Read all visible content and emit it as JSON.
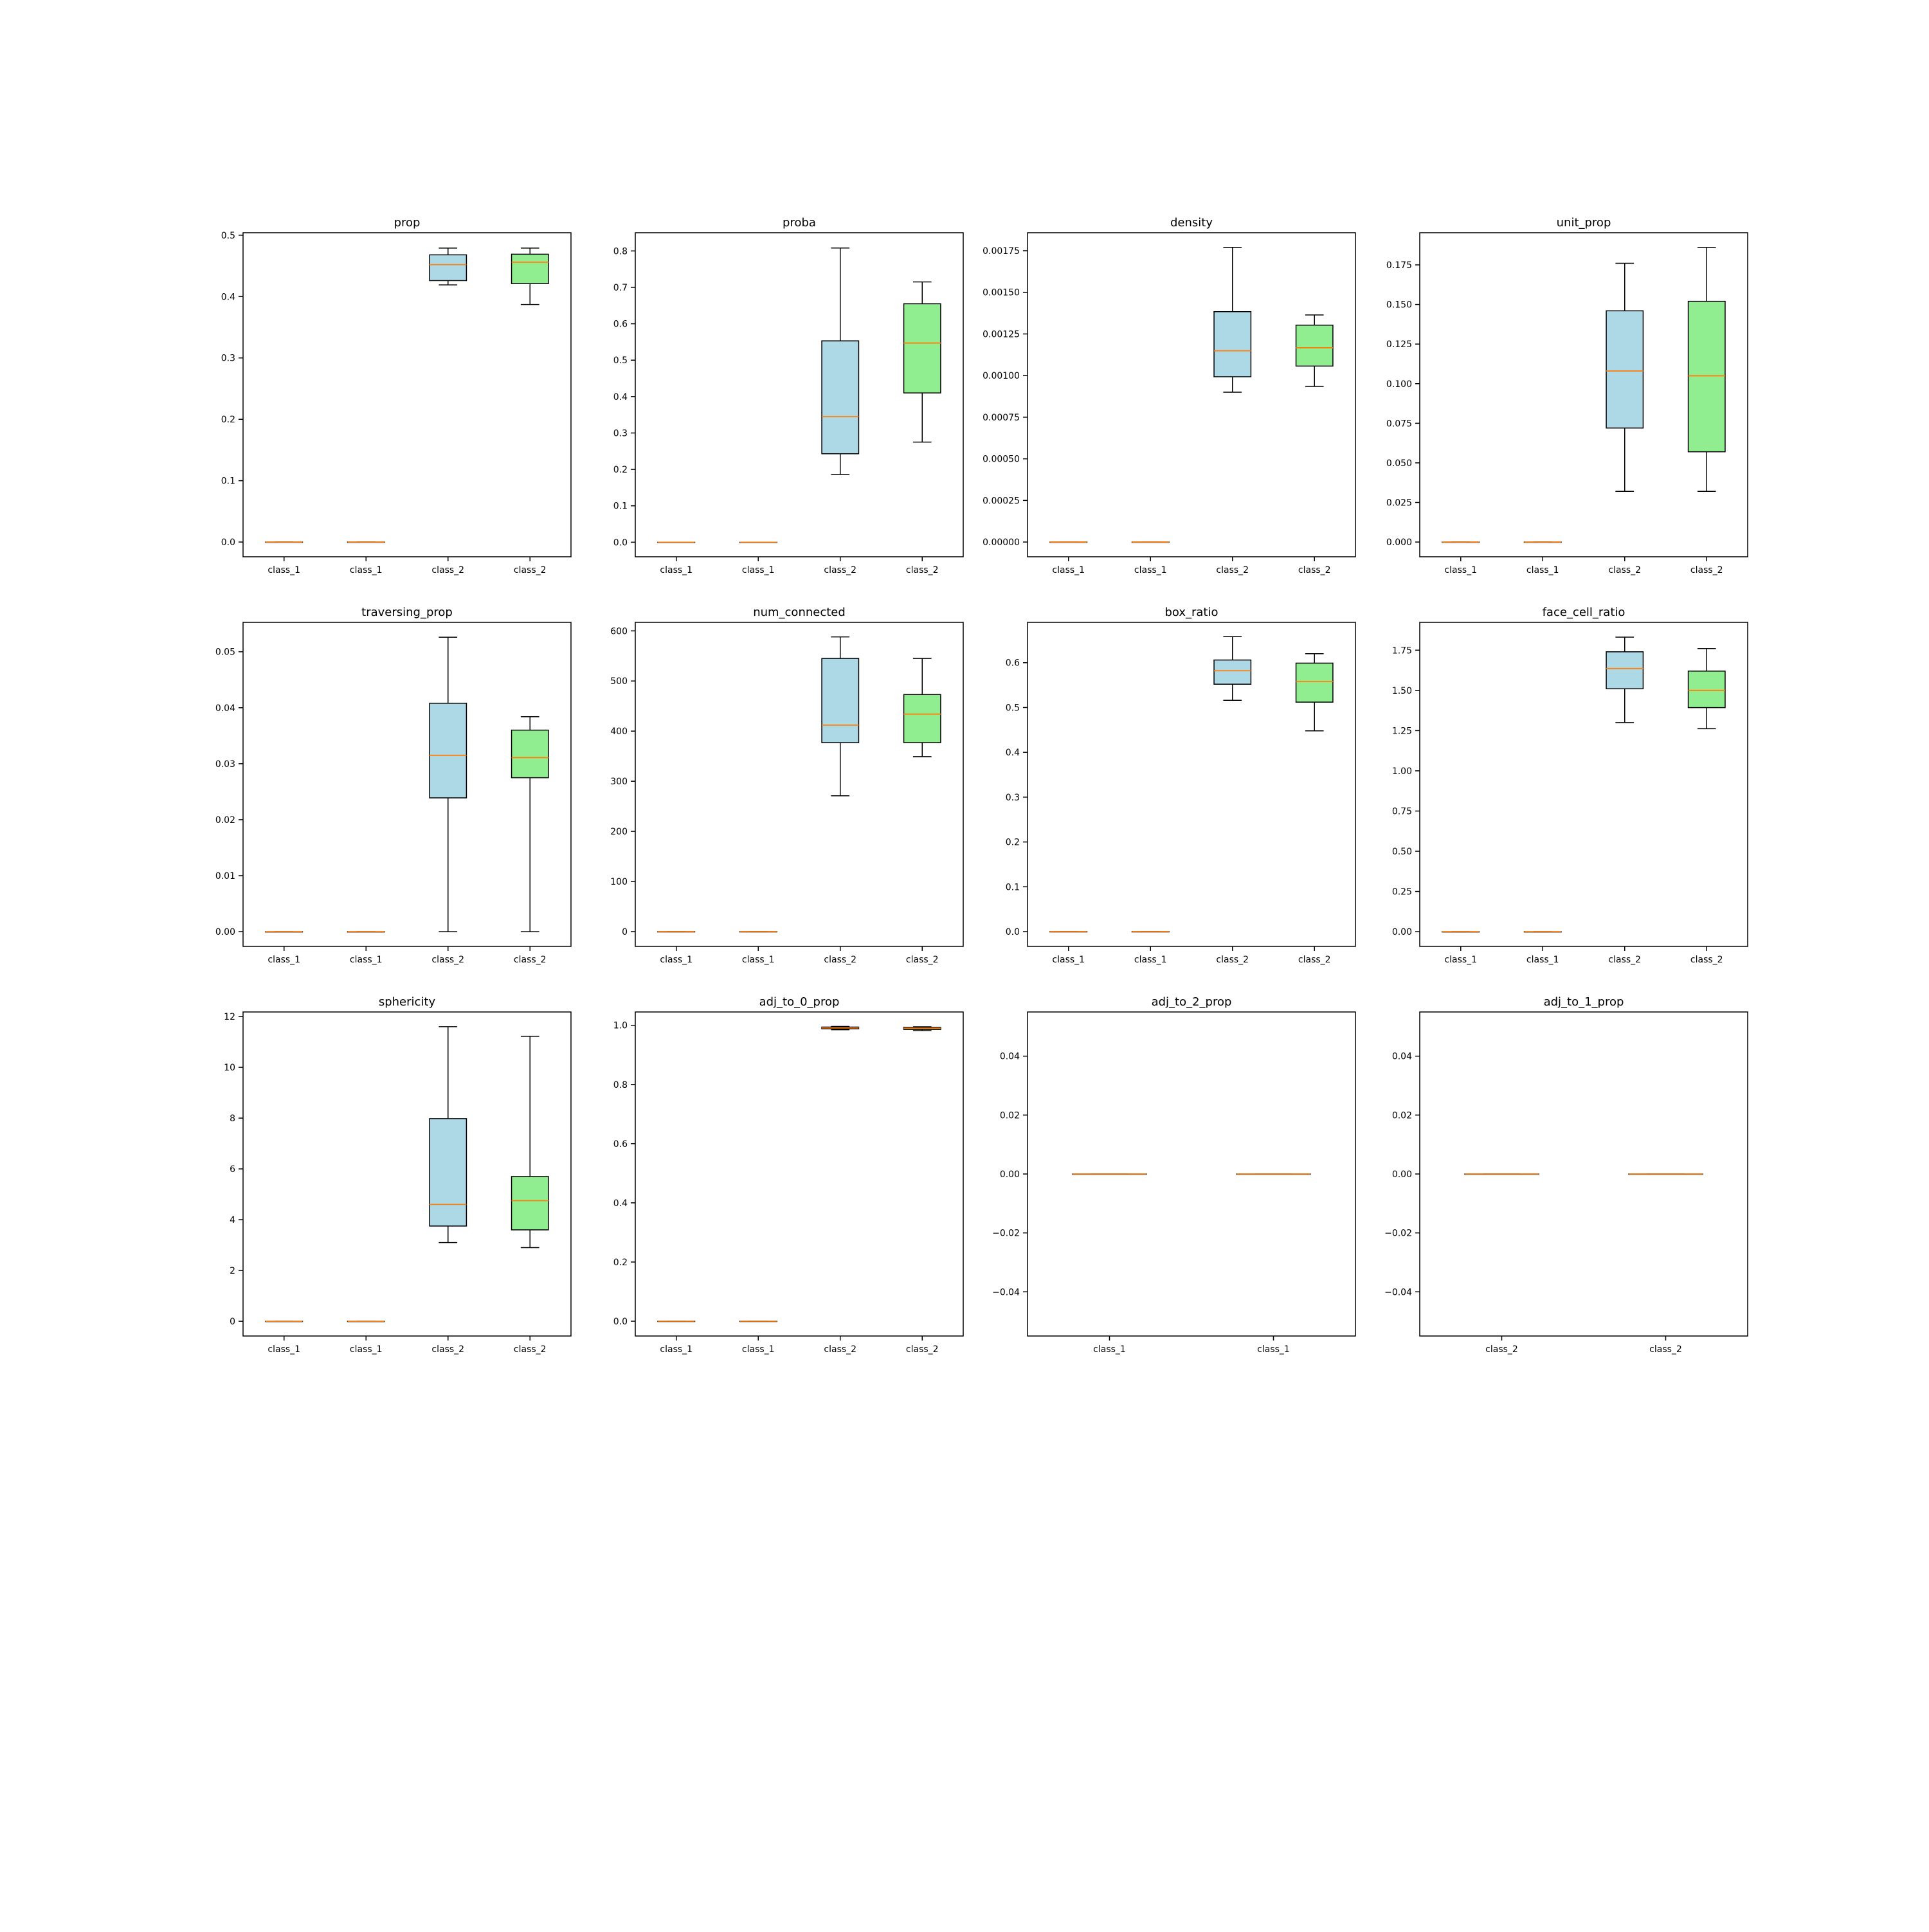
{
  "colors": {
    "class_1_fill": "#add8e6",
    "class_2_fill": "#90ee90",
    "median": "#ff7f0e",
    "edge": "#000000"
  },
  "chart_data": [
    {
      "type": "box",
      "title": "prop",
      "yticks": [
        0.0,
        0.1,
        0.2,
        0.3,
        0.4,
        0.5
      ],
      "ytick_labels": [
        "0.0",
        "0.1",
        "0.2",
        "0.3",
        "0.4",
        "0.5"
      ],
      "ylim": [
        -0.024,
        0.504
      ],
      "categories": [
        "class_1",
        "class_1",
        "class_2",
        "class_2"
      ],
      "boxes": [
        {
          "whislo": 0,
          "q1": 0,
          "med": 0,
          "q3": 0,
          "whishi": 0,
          "fill": "class_1_fill"
        },
        {
          "whislo": 0,
          "q1": 0,
          "med": 0,
          "q3": 0,
          "whishi": 0,
          "fill": "class_2_fill"
        },
        {
          "whislo": 0.419,
          "q1": 0.426,
          "med": 0.452,
          "q3": 0.468,
          "whishi": 0.479,
          "fill": "class_1_fill"
        },
        {
          "whislo": 0.387,
          "q1": 0.421,
          "med": 0.456,
          "q3": 0.469,
          "whishi": 0.479,
          "fill": "class_2_fill"
        }
      ]
    },
    {
      "type": "box",
      "title": "proba",
      "yticks": [
        0.0,
        0.1,
        0.2,
        0.3,
        0.4,
        0.5,
        0.6,
        0.7,
        0.8
      ],
      "ytick_labels": [
        "0.0",
        "0.1",
        "0.2",
        "0.3",
        "0.4",
        "0.5",
        "0.6",
        "0.7",
        "0.8"
      ],
      "ylim": [
        -0.04,
        0.85
      ],
      "categories": [
        "class_1",
        "class_1",
        "class_2",
        "class_2"
      ],
      "boxes": [
        {
          "whislo": 0,
          "q1": 0,
          "med": 0,
          "q3": 0,
          "whishi": 0,
          "fill": "class_1_fill"
        },
        {
          "whislo": 0,
          "q1": 0,
          "med": 0,
          "q3": 0,
          "whishi": 0,
          "fill": "class_2_fill"
        },
        {
          "whislo": 0.186,
          "q1": 0.243,
          "med": 0.345,
          "q3": 0.553,
          "whishi": 0.808,
          "fill": "class_1_fill"
        },
        {
          "whislo": 0.275,
          "q1": 0.41,
          "med": 0.547,
          "q3": 0.655,
          "whishi": 0.715,
          "fill": "class_2_fill"
        }
      ]
    },
    {
      "type": "box",
      "title": "density",
      "yticks": [
        0.0,
        0.00025,
        0.0005,
        0.00075,
        0.001,
        0.00125,
        0.0015,
        0.00175
      ],
      "ytick_labels": [
        "0.00000",
        "0.00025",
        "0.00050",
        "0.00075",
        "0.00100",
        "0.00125",
        "0.00150",
        "0.00175"
      ],
      "ylim": [
        -8.85e-05,
        0.001858
      ],
      "categories": [
        "class_1",
        "class_1",
        "class_2",
        "class_2"
      ],
      "boxes": [
        {
          "whislo": 0,
          "q1": 0,
          "med": 0,
          "q3": 0,
          "whishi": 0,
          "fill": "class_1_fill"
        },
        {
          "whislo": 0,
          "q1": 0,
          "med": 0,
          "q3": 0,
          "whishi": 0,
          "fill": "class_2_fill"
        },
        {
          "whislo": 0.0009,
          "q1": 0.000993,
          "med": 0.001149,
          "q3": 0.001384,
          "whishi": 0.00177,
          "fill": "class_1_fill"
        },
        {
          "whislo": 0.000935,
          "q1": 0.001057,
          "med": 0.001167,
          "q3": 0.001303,
          "whishi": 0.001364,
          "fill": "class_2_fill"
        }
      ]
    },
    {
      "type": "box",
      "title": "unit_prop",
      "yticks": [
        0.0,
        0.025,
        0.05,
        0.075,
        0.1,
        0.125,
        0.15,
        0.175
      ],
      "ytick_labels": [
        "0.000",
        "0.025",
        "0.050",
        "0.075",
        "0.100",
        "0.125",
        "0.150",
        "0.175"
      ],
      "ylim": [
        -0.0093,
        0.1953
      ],
      "categories": [
        "class_1",
        "class_1",
        "class_2",
        "class_2"
      ],
      "boxes": [
        {
          "whislo": 0,
          "q1": 0,
          "med": 0,
          "q3": 0,
          "whishi": 0,
          "fill": "class_1_fill"
        },
        {
          "whislo": 0,
          "q1": 0,
          "med": 0,
          "q3": 0,
          "whishi": 0,
          "fill": "class_2_fill"
        },
        {
          "whislo": 0.032,
          "q1": 0.072,
          "med": 0.108,
          "q3": 0.146,
          "whishi": 0.176,
          "fill": "class_1_fill"
        },
        {
          "whislo": 0.032,
          "q1": 0.057,
          "med": 0.105,
          "q3": 0.152,
          "whishi": 0.186,
          "fill": "class_2_fill"
        }
      ]
    },
    {
      "type": "box",
      "title": "traversing_prop",
      "yticks": [
        0.0,
        0.01,
        0.02,
        0.03,
        0.04,
        0.05
      ],
      "ytick_labels": [
        "0.00",
        "0.01",
        "0.02",
        "0.03",
        "0.04",
        "0.05"
      ],
      "ylim": [
        -0.00263,
        0.05525
      ],
      "categories": [
        "class_1",
        "class_1",
        "class_2",
        "class_2"
      ],
      "boxes": [
        {
          "whislo": 0,
          "q1": 0,
          "med": 0,
          "q3": 0,
          "whishi": 0,
          "fill": "class_1_fill"
        },
        {
          "whislo": 0,
          "q1": 0,
          "med": 0,
          "q3": 0,
          "whishi": 0,
          "fill": "class_2_fill"
        },
        {
          "whislo": 0.0,
          "q1": 0.0239,
          "med": 0.0315,
          "q3": 0.0408,
          "whishi": 0.0526,
          "fill": "class_1_fill"
        },
        {
          "whislo": 0.0,
          "q1": 0.0275,
          "med": 0.0311,
          "q3": 0.036,
          "whishi": 0.0384,
          "fill": "class_2_fill"
        }
      ]
    },
    {
      "type": "box",
      "title": "num_connected",
      "yticks": [
        0,
        100,
        200,
        300,
        400,
        500,
        600
      ],
      "ytick_labels": [
        "0",
        "100",
        "200",
        "300",
        "400",
        "500",
        "600"
      ],
      "ylim": [
        -29.5,
        617
      ],
      "categories": [
        "class_1",
        "class_1",
        "class_2",
        "class_2"
      ],
      "boxes": [
        {
          "whislo": 0,
          "q1": 0,
          "med": 0,
          "q3": 0,
          "whishi": 0,
          "fill": "class_1_fill"
        },
        {
          "whislo": 0,
          "q1": 0,
          "med": 0,
          "q3": 0,
          "whishi": 0,
          "fill": "class_2_fill"
        },
        {
          "whislo": 271,
          "q1": 377,
          "med": 412,
          "q3": 545,
          "whishi": 588,
          "fill": "class_1_fill"
        },
        {
          "whislo": 349,
          "q1": 377,
          "med": 434,
          "q3": 473,
          "whishi": 545,
          "fill": "class_2_fill"
        }
      ]
    },
    {
      "type": "box",
      "title": "box_ratio",
      "yticks": [
        0.0,
        0.1,
        0.2,
        0.3,
        0.4,
        0.5,
        0.6
      ],
      "ytick_labels": [
        "0.0",
        "0.1",
        "0.2",
        "0.3",
        "0.4",
        "0.5",
        "0.6"
      ],
      "ylim": [
        -0.033,
        0.69
      ],
      "categories": [
        "class_1",
        "class_1",
        "class_2",
        "class_2"
      ],
      "boxes": [
        {
          "whislo": 0,
          "q1": 0,
          "med": 0,
          "q3": 0,
          "whishi": 0,
          "fill": "class_1_fill"
        },
        {
          "whislo": 0,
          "q1": 0,
          "med": 0,
          "q3": 0,
          "whishi": 0,
          "fill": "class_2_fill"
        },
        {
          "whislo": 0.516,
          "q1": 0.552,
          "med": 0.582,
          "q3": 0.606,
          "whishi": 0.658,
          "fill": "class_1_fill"
        },
        {
          "whislo": 0.448,
          "q1": 0.512,
          "med": 0.558,
          "q3": 0.599,
          "whishi": 0.62,
          "fill": "class_2_fill"
        }
      ]
    },
    {
      "type": "box",
      "title": "face_cell_ratio",
      "yticks": [
        0.0,
        0.25,
        0.5,
        0.75,
        1.0,
        1.25,
        1.5,
        1.75
      ],
      "ytick_labels": [
        "0.00",
        "0.25",
        "0.50",
        "0.75",
        "1.00",
        "1.25",
        "1.50",
        "1.75"
      ],
      "ylim": [
        -0.0915,
        1.923
      ],
      "categories": [
        "class_1",
        "class_1",
        "class_2",
        "class_2"
      ],
      "boxes": [
        {
          "whislo": 0,
          "q1": 0,
          "med": 0,
          "q3": 0,
          "whishi": 0,
          "fill": "class_1_fill"
        },
        {
          "whislo": 0,
          "q1": 0,
          "med": 0,
          "q3": 0,
          "whishi": 0,
          "fill": "class_2_fill"
        },
        {
          "whislo": 1.3,
          "q1": 1.51,
          "med": 1.636,
          "q3": 1.74,
          "whishi": 1.831,
          "fill": "class_1_fill"
        },
        {
          "whislo": 1.262,
          "q1": 1.393,
          "med": 1.5,
          "q3": 1.62,
          "whishi": 1.76,
          "fill": "class_2_fill"
        }
      ]
    },
    {
      "type": "box",
      "title": "sphericity",
      "yticks": [
        0,
        2,
        4,
        6,
        8,
        10,
        12
      ],
      "ytick_labels": [
        "0",
        "2",
        "4",
        "6",
        "8",
        "10",
        "12"
      ],
      "ylim": [
        -0.58,
        12.18
      ],
      "categories": [
        "class_1",
        "class_1",
        "class_2",
        "class_2"
      ],
      "boxes": [
        {
          "whislo": 0,
          "q1": 0,
          "med": 0,
          "q3": 0,
          "whishi": 0,
          "fill": "class_1_fill"
        },
        {
          "whislo": 0,
          "q1": 0,
          "med": 0,
          "q3": 0,
          "whishi": 0,
          "fill": "class_2_fill"
        },
        {
          "whislo": 3.1,
          "q1": 3.75,
          "med": 4.6,
          "q3": 7.98,
          "whishi": 11.6,
          "fill": "class_1_fill"
        },
        {
          "whislo": 2.9,
          "q1": 3.6,
          "med": 4.75,
          "q3": 5.7,
          "whishi": 11.22,
          "fill": "class_2_fill"
        }
      ]
    },
    {
      "type": "box",
      "title": "adj_to_0_prop",
      "yticks": [
        0.0,
        0.2,
        0.4,
        0.6,
        0.8,
        1.0
      ],
      "ytick_labels": [
        "0.0",
        "0.2",
        "0.4",
        "0.6",
        "0.8",
        "1.0"
      ],
      "ylim": [
        -0.05,
        1.045
      ],
      "categories": [
        "class_1",
        "class_1",
        "class_2",
        "class_2"
      ],
      "boxes": [
        {
          "whislo": 0,
          "q1": 0,
          "med": 0,
          "q3": 0,
          "whishi": 0,
          "fill": "class_1_fill"
        },
        {
          "whislo": 0,
          "q1": 0,
          "med": 0,
          "q3": 0,
          "whishi": 0,
          "fill": "class_2_fill"
        },
        {
          "whislo": 0.985,
          "q1": 0.988,
          "med": 0.991,
          "q3": 0.994,
          "whishi": 0.996,
          "fill": "class_1_fill"
        },
        {
          "whislo": 0.982,
          "q1": 0.986,
          "med": 0.99,
          "q3": 0.993,
          "whishi": 0.995,
          "fill": "class_2_fill"
        }
      ]
    },
    {
      "type": "box",
      "title": "adj_to_2_prop",
      "yticks": [
        -0.04,
        -0.02,
        0.0,
        0.02,
        0.04
      ],
      "ytick_labels": [
        "−0.04",
        "−0.02",
        "0.00",
        "0.02",
        "0.04"
      ],
      "ylim": [
        -0.055,
        0.055
      ],
      "categories": [
        "class_1",
        "class_1"
      ],
      "boxes": [
        {
          "whislo": 0,
          "q1": 0,
          "med": 0,
          "q3": 0,
          "whishi": 0,
          "fill": "class_1_fill"
        },
        {
          "whislo": 0,
          "q1": 0,
          "med": 0,
          "q3": 0,
          "whishi": 0,
          "fill": "class_2_fill"
        }
      ]
    },
    {
      "type": "box",
      "title": "adj_to_1_prop",
      "yticks": [
        -0.04,
        -0.02,
        0.0,
        0.02,
        0.04
      ],
      "ytick_labels": [
        "−0.04",
        "−0.02",
        "0.00",
        "0.02",
        "0.04"
      ],
      "ylim": [
        -0.055,
        0.055
      ],
      "categories": [
        "class_2",
        "class_2"
      ],
      "boxes": [
        {
          "whislo": 0,
          "q1": 0,
          "med": 0,
          "q3": 0,
          "whishi": 0,
          "fill": "class_1_fill"
        },
        {
          "whislo": 0,
          "q1": 0,
          "med": 0,
          "q3": 0,
          "whishi": 0,
          "fill": "class_2_fill"
        }
      ]
    }
  ]
}
